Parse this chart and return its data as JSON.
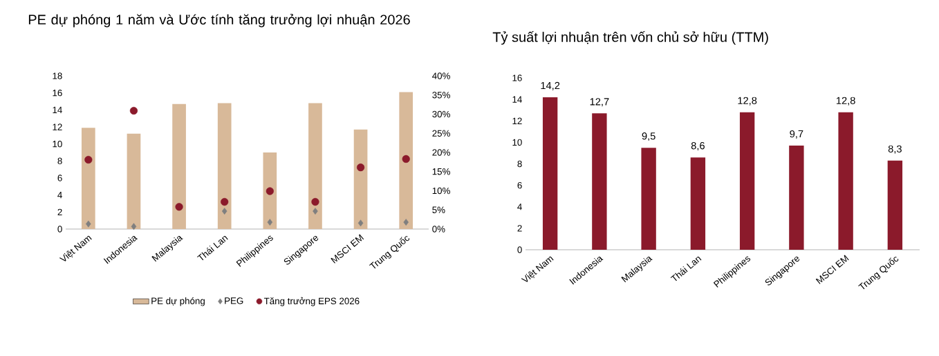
{
  "chart_data": [
    {
      "type": "bar",
      "title": "PE dự phóng 1 năm và Ước tính tăng trưởng lợi nhuận 2026",
      "categories": [
        "Việt Nam",
        "Indonesia",
        "Malaysia",
        "Thái Lan",
        "Philippines",
        "Singapore",
        "MSCI EM",
        "Trung Quốc"
      ],
      "series": [
        {
          "name": "PE dự phóng",
          "type": "bar",
          "color": "#d8b999",
          "values": [
            11.9,
            11.2,
            14.7,
            14.8,
            9.0,
            14.8,
            11.7,
            16.1
          ]
        },
        {
          "name": "PEG",
          "type": "scatter",
          "marker": "diamond",
          "color": "#7f7f7f",
          "values": [
            0.6,
            0.3,
            null,
            2.1,
            0.8,
            2.1,
            0.7,
            0.8
          ]
        },
        {
          "name": "Tăng trưởng EPS 2026",
          "type": "scatter",
          "marker": "circle",
          "axis": "y2",
          "color": "#8b1a2b",
          "values": [
            18.1,
            30.9,
            5.8,
            7.1,
            9.9,
            7.1,
            16.1,
            18.3
          ]
        }
      ],
      "ylim": [
        0,
        18
      ],
      "yticks": [
        0,
        2,
        4,
        6,
        8,
        10,
        12,
        14,
        16,
        18
      ],
      "y2lim": [
        0,
        40
      ],
      "y2ticks": [
        {
          "value": 0,
          "label": "0%"
        },
        {
          "value": 5,
          "label": "5%"
        },
        {
          "value": 10,
          "label": "10%"
        },
        {
          "value": 15,
          "label": "15%"
        },
        {
          "value": 20,
          "label": "20%"
        },
        {
          "value": 25,
          "label": "25%"
        },
        {
          "value": 30,
          "label": "30%"
        },
        {
          "value": 35,
          "label": "35%"
        },
        {
          "value": 40,
          "label": "40%"
        }
      ],
      "legend": "bottom",
      "grid": false
    },
    {
      "type": "bar",
      "title": "Tỷ suất lợi nhuận trên vốn chủ sở hữu (TTM)",
      "categories": [
        "Việt Nam",
        "Indonesia",
        "Malaysia",
        "Thái Lan",
        "Philippines",
        "Singapore",
        "MSCI EM",
        "Trung Quốc"
      ],
      "values": [
        14.2,
        12.7,
        9.5,
        8.6,
        12.8,
        9.7,
        12.8,
        8.3
      ],
      "value_labels": [
        "14,2",
        "12,7",
        "9,5",
        "8,6",
        "12,8",
        "9,7",
        "12,8",
        "8,3"
      ],
      "color": "#8b1a2b",
      "ylim": [
        0,
        16
      ],
      "yticks": [
        0,
        2,
        4,
        6,
        8,
        10,
        12,
        14,
        16
      ],
      "grid": false
    }
  ]
}
